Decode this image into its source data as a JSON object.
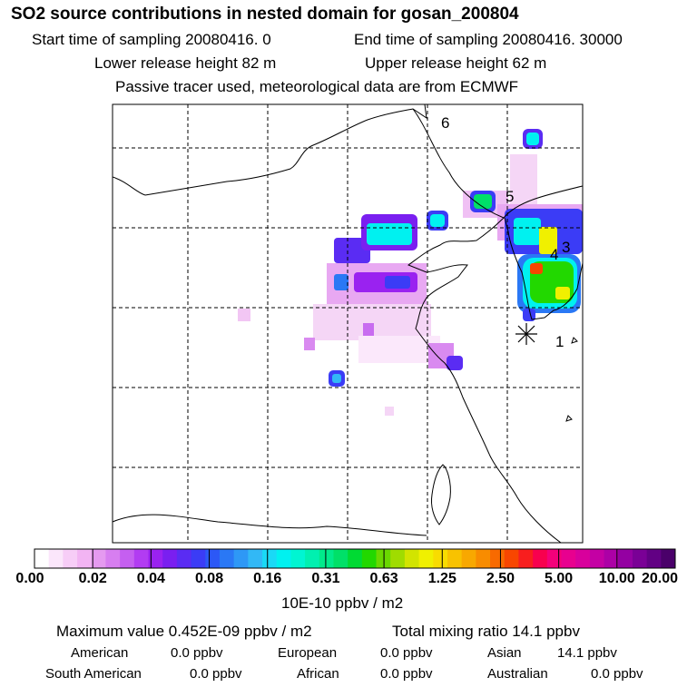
{
  "header": {
    "title": "SO2 source contributions in nested domain for gosan_200804",
    "start_time": "Start time of sampling 20080416.     0",
    "end_time": "End time of sampling 20080416. 30000",
    "lower_height": "Lower release height   82 m",
    "upper_height": "Upper release height   62 m",
    "tracer_note": "Passive tracer used, meteorological data are from ECMWF"
  },
  "map": {
    "region_labels": [
      "1",
      "3",
      "4",
      "5",
      "6"
    ],
    "receptor_marker": "asterisk"
  },
  "colorbar": {
    "tick_labels": [
      "0.00",
      "0.02",
      "0.04",
      "0.08",
      "0.16",
      "0.31",
      "0.63",
      "1.25",
      "2.50",
      "5.00",
      "10.00",
      "20.00"
    ],
    "colors": [
      "#ffffff",
      "#fbe6fb",
      "#f7cdf7",
      "#f2b4f3",
      "#e59af0",
      "#d77ef0",
      "#c55ff0",
      "#b23cf2",
      "#9a22f0",
      "#7a1ff0",
      "#5a2cf3",
      "#3b3cf6",
      "#2c58f6",
      "#2a78f5",
      "#2e98f6",
      "#32b8f6",
      "#1ad9f6",
      "#00f1f0",
      "#00f5d2",
      "#00f0b0",
      "#00ea8b",
      "#00e068",
      "#00da33",
      "#22d800",
      "#6ad800",
      "#a0dc00",
      "#d2e400",
      "#f0f000",
      "#f8dc00",
      "#f8c200",
      "#f8a800",
      "#f88c00",
      "#f86a00",
      "#f84600",
      "#f81e1e",
      "#f8004e",
      "#f4007a",
      "#e8008f",
      "#d8009c",
      "#c400a4",
      "#ac00a6",
      "#9400a2",
      "#7a0096",
      "#620084",
      "#4a006a"
    ]
  },
  "footer": {
    "units": "10E-10 ppbv / m2",
    "max_value": "Maximum value  0.452E-09 ppbv / m2",
    "total_mixing": "Total mixing ratio       14.1 ppbv",
    "american_label": "American",
    "american_value": "0.0 ppbv",
    "european_label": "European",
    "european_value": "0.0 ppbv",
    "asian_label": "Asian",
    "asian_value": "14.1 ppbv",
    "south_american_label": "South American",
    "south_american_value": "0.0 ppbv",
    "african_label": "African",
    "african_value": "0.0 ppbv",
    "australian_label": "Australian",
    "australian_value": "0.0 ppbv"
  }
}
